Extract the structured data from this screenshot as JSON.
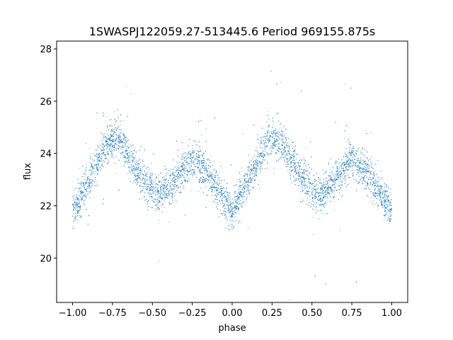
{
  "chart_data": {
    "type": "scatter",
    "title": "1SWASPJ122059.27-513445.6 Period 969155.875s",
    "xlabel": "phase",
    "ylabel": "flux",
    "xlim": [
      -1.1,
      1.1
    ],
    "ylim": [
      18.3,
      28.3
    ],
    "x_ticks": [
      -1.0,
      -0.75,
      -0.5,
      -0.25,
      0.0,
      0.25,
      0.5,
      0.75,
      1.0
    ],
    "x_tick_labels": [
      "−1.00",
      "−0.75",
      "−0.50",
      "−0.25",
      "0.00",
      "0.25",
      "0.50",
      "0.75",
      "1.00"
    ],
    "y_ticks": [
      20,
      22,
      24,
      26,
      28
    ],
    "y_tick_labels": [
      "20",
      "22",
      "24",
      "26",
      "28"
    ],
    "grid": false,
    "legend": "none",
    "series": [
      {
        "color": "#1f77b4",
        "marker_size": 1,
        "x_range": [
          -1.0,
          1.0
        ],
        "mean_curve": {
          "phase": [
            -1.0,
            -0.9,
            -0.8,
            -0.75,
            -0.7,
            -0.6,
            -0.5,
            -0.45,
            -0.4,
            -0.3,
            -0.25,
            -0.2,
            -0.1,
            0.0,
            0.1,
            0.2,
            0.25,
            0.3,
            0.4,
            0.5,
            0.55,
            0.6,
            0.7,
            0.75,
            0.8,
            0.9,
            1.0
          ],
          "flux": [
            21.8,
            22.9,
            24.2,
            24.6,
            24.5,
            23.4,
            22.6,
            22.4,
            22.7,
            23.4,
            23.8,
            23.6,
            22.7,
            21.8,
            22.9,
            24.2,
            24.6,
            24.5,
            23.4,
            22.6,
            22.4,
            22.7,
            23.4,
            23.8,
            23.6,
            22.7,
            21.8
          ]
        },
        "scatter_sigma": 0.35,
        "n_points": 9000
      }
    ]
  }
}
